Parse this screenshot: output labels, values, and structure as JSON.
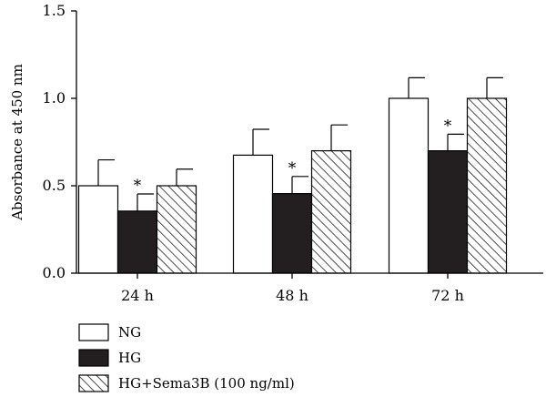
{
  "chart_data": {
    "type": "bar",
    "title": "",
    "xlabel": "",
    "ylabel": "Absorbance at 450 nm",
    "ylim": [
      0,
      1.5
    ],
    "yticks": [
      "0.0",
      "0.5",
      "1.0",
      "1.5"
    ],
    "ytick_values": [
      0,
      0.5,
      1.0,
      1.5
    ],
    "categories": [
      "24 h",
      "48 h",
      "72 h"
    ],
    "grid": false,
    "legend_position": "bottom-left",
    "significance_marker": "*",
    "series": [
      {
        "name": "NG",
        "fill": "white",
        "values": [
          0.5,
          0.675,
          1.0
        ],
        "errors": [
          0.148,
          0.148,
          0.118
        ]
      },
      {
        "name": "HG",
        "fill": "black",
        "values": [
          0.355,
          0.455,
          0.7
        ],
        "errors": [
          0.098,
          0.098,
          0.095
        ]
      },
      {
        "name": "HG+Sema3B (100 ng/ml)",
        "fill": "hatched",
        "values": [
          0.5,
          0.7,
          1.0
        ],
        "errors": [
          0.095,
          0.148,
          0.118
        ]
      }
    ],
    "significant": [
      [
        false,
        true,
        false
      ],
      [
        false,
        true,
        false
      ],
      [
        false,
        true,
        false
      ]
    ]
  },
  "colors": {
    "bar_fill_dark": "#231f20",
    "axis": "#000000",
    "background": "#ffffff"
  }
}
